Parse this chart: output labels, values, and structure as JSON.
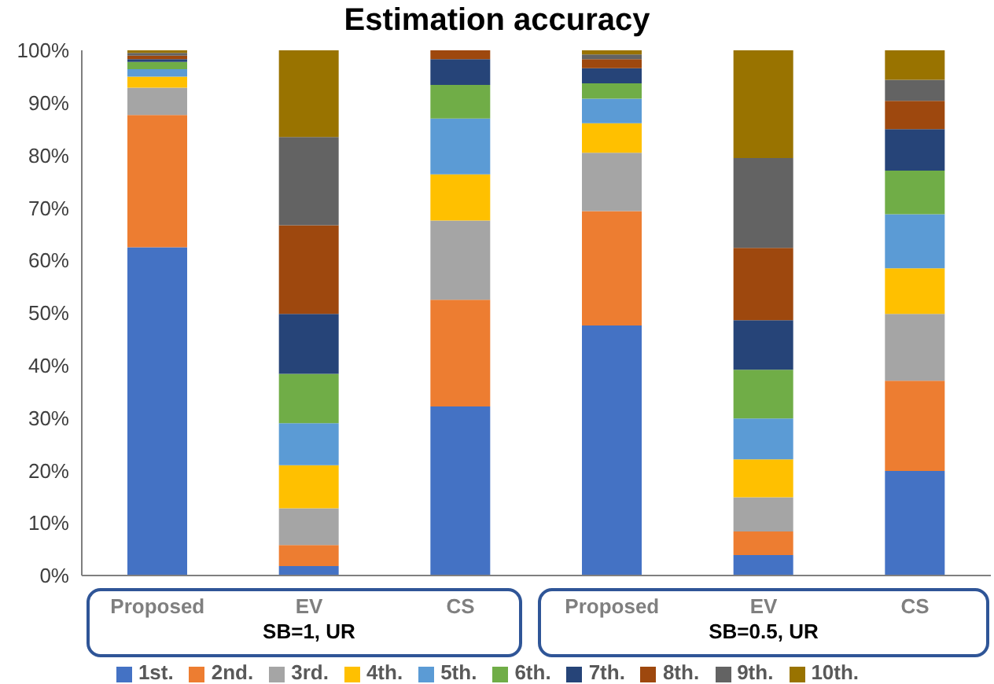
{
  "chart_data": {
    "type": "bar",
    "title": "Estimation accuracy",
    "stacked": true,
    "categories": [
      "Proposed",
      "EV",
      "CS",
      "Proposed",
      "EV",
      "CS"
    ],
    "annotations": [
      "SB=1, UR",
      "SB=0.5, UR"
    ],
    "series": [
      {
        "name": "1st.",
        "color": "#4472c4",
        "values": [
          62.5,
          1.8,
          32.2,
          47.6,
          3.9,
          19.9
        ]
      },
      {
        "name": "2nd.",
        "color": "#ed7d31",
        "values": [
          25.2,
          4.0,
          20.3,
          21.8,
          4.5,
          17.2
        ]
      },
      {
        "name": "3rd.",
        "color": "#a5a5a5",
        "values": [
          5.2,
          7.0,
          15.1,
          11.1,
          6.5,
          12.7
        ]
      },
      {
        "name": "4th.",
        "color": "#ffc000",
        "values": [
          2.1,
          8.2,
          8.8,
          5.6,
          7.2,
          8.7
        ]
      },
      {
        "name": "5th.",
        "color": "#5b9bd5",
        "values": [
          1.4,
          8.0,
          10.6,
          4.7,
          7.8,
          10.3
        ]
      },
      {
        "name": "6th.",
        "color": "#70ad47",
        "values": [
          1.4,
          9.4,
          6.4,
          2.9,
          9.3,
          8.3
        ]
      },
      {
        "name": "7th.",
        "color": "#264478",
        "values": [
          0.5,
          11.4,
          4.9,
          2.9,
          9.4,
          7.9
        ]
      },
      {
        "name": "8th.",
        "color": "#9e480e",
        "values": [
          0.7,
          16.9,
          1.7,
          1.7,
          13.8,
          5.4
        ]
      },
      {
        "name": "9th.",
        "color": "#636363",
        "values": [
          0.5,
          16.8,
          0,
          0.9,
          17.1,
          4.0
        ]
      },
      {
        "name": "10th.",
        "color": "#997300",
        "values": [
          0.5,
          16.5,
          0,
          0.8,
          20.5,
          5.6
        ]
      }
    ],
    "ylim": [
      0,
      100
    ],
    "yticks": [
      {
        "value": 0,
        "label": "0%"
      },
      {
        "value": 10,
        "label": "10%"
      },
      {
        "value": 20,
        "label": "20%"
      },
      {
        "value": 30,
        "label": "30%"
      },
      {
        "value": 40,
        "label": "40%"
      },
      {
        "value": 50,
        "label": "50%"
      },
      {
        "value": 60,
        "label": "60%"
      },
      {
        "value": 70,
        "label": "70%"
      },
      {
        "value": 80,
        "label": "80%"
      },
      {
        "value": 90,
        "label": "90%"
      },
      {
        "value": 100,
        "label": "100%"
      }
    ],
    "grid": false,
    "legend": "bottom"
  }
}
